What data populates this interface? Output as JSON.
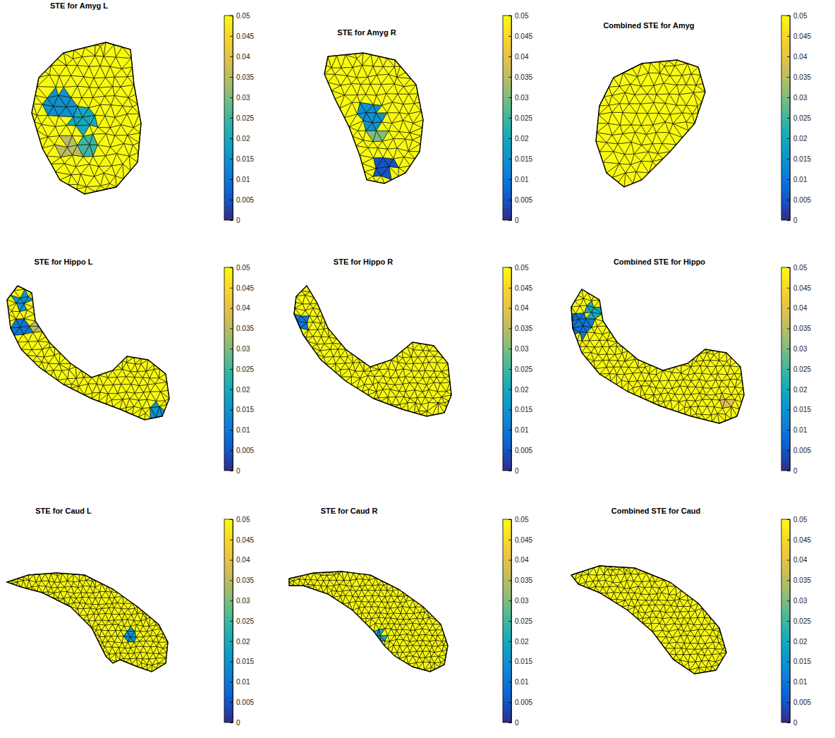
{
  "chart_data": [
    {
      "type": "surface",
      "title": "STE for Amyg L",
      "clim": [
        0,
        0.05
      ],
      "cticks": [
        0,
        0.005,
        0.01,
        0.015,
        0.02,
        0.025,
        0.03,
        0.035,
        0.04,
        0.045,
        0.05
      ],
      "surface_value": 0.05,
      "patch_values": [
        0.015,
        0.02,
        0.035,
        0.025
      ]
    },
    {
      "type": "surface",
      "title": "STE for Amyg R",
      "clim": [
        0,
        0.05
      ],
      "cticks": [
        0,
        0.005,
        0.01,
        0.015,
        0.02,
        0.025,
        0.03,
        0.035,
        0.04,
        0.045,
        0.05
      ],
      "surface_value": 0.05,
      "patch_values": [
        0.015,
        0.005,
        0.03
      ]
    },
    {
      "type": "surface",
      "title": "Combined STE for Amyg",
      "clim": [
        0,
        0.05
      ],
      "cticks": [
        0,
        0.005,
        0.01,
        0.015,
        0.02,
        0.025,
        0.03,
        0.035,
        0.04,
        0.045,
        0.05
      ],
      "surface_value": 0.05
    },
    {
      "type": "surface",
      "title": "STE for Hippo L",
      "clim": [
        0,
        0.05
      ],
      "cticks": [
        0,
        0.005,
        0.01,
        0.015,
        0.02,
        0.025,
        0.03,
        0.035,
        0.04,
        0.045,
        0.05
      ],
      "surface_value": 0.05,
      "patch_values": [
        0.015,
        0.01,
        0.035,
        0.015
      ]
    },
    {
      "type": "surface",
      "title": "STE for Hippo R",
      "clim": [
        0,
        0.05
      ],
      "cticks": [
        0,
        0.005,
        0.01,
        0.015,
        0.02,
        0.025,
        0.03,
        0.035,
        0.04,
        0.045,
        0.05
      ],
      "surface_value": 0.05,
      "patch_values": [
        0.01
      ]
    },
    {
      "type": "surface",
      "title": "Combined STE for Hippo",
      "clim": [
        0,
        0.05
      ],
      "cticks": [
        0,
        0.005,
        0.01,
        0.015,
        0.02,
        0.025,
        0.03,
        0.035,
        0.04,
        0.045,
        0.05
      ],
      "surface_value": 0.05,
      "patch_values": [
        0.01,
        0.02,
        0.04,
        0.01
      ]
    },
    {
      "type": "surface",
      "title": "STE for Caud L",
      "clim": [
        0,
        0.05
      ],
      "cticks": [
        0,
        0.005,
        0.01,
        0.015,
        0.02,
        0.025,
        0.03,
        0.035,
        0.04,
        0.045,
        0.05
      ],
      "surface_value": 0.05,
      "patch_values": [
        0.015
      ]
    },
    {
      "type": "surface",
      "title": "STE for Caud R",
      "clim": [
        0,
        0.05
      ],
      "cticks": [
        0,
        0.005,
        0.01,
        0.015,
        0.02,
        0.025,
        0.03,
        0.035,
        0.04,
        0.045,
        0.05
      ],
      "surface_value": 0.05,
      "patch_values": [
        0.02
      ]
    },
    {
      "type": "surface",
      "title": "Combined STE for Caud",
      "clim": [
        0,
        0.05
      ],
      "cticks": [
        0,
        0.005,
        0.01,
        0.015,
        0.02,
        0.025,
        0.03,
        0.035,
        0.04,
        0.045,
        0.05
      ],
      "surface_value": 0.05
    }
  ]
}
